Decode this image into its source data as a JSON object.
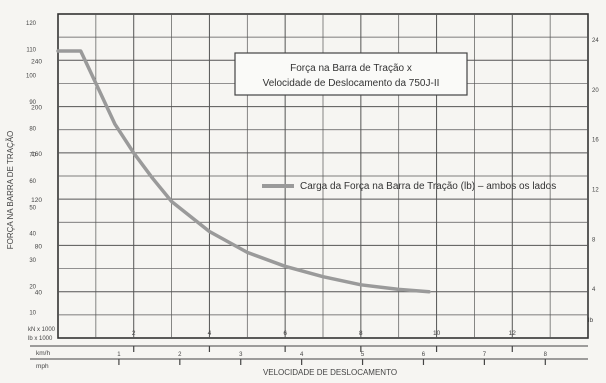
{
  "chart_data": {
    "type": "line",
    "title_lines": [
      "Força na Barra de Tração x",
      "Velocidade de Deslocamento da 750J-II"
    ],
    "xlabel": "VELOCIDADE DE DESLOCAMENTO",
    "ylabel": "FORÇA NA BARRA DE TRAÇÃO",
    "row_labels": {
      "x_row1": "km/h",
      "x_row2": "mph",
      "y_left_units": "lb x 1000",
      "y_right_units": "kN x 1000",
      "y_far_right_units": "lb"
    },
    "legend": "Carga da Força na Barra de Tração (lb) – ambos os lados",
    "grid": true,
    "xlim": [
      0,
      14
    ],
    "x_ticks": [
      2,
      4,
      6,
      8,
      10,
      12
    ],
    "x_ticks_mph": [
      1,
      2,
      3,
      4,
      5,
      6,
      7,
      8
    ],
    "ylim": [
      0,
      280
    ],
    "y_ticks_lb": [
      40,
      80,
      120,
      160,
      200,
      240
    ],
    "y_ticks_kn": [
      10,
      20,
      30,
      40,
      50,
      60,
      70,
      80,
      90,
      100,
      110,
      120
    ],
    "y_ticks_right": [
      4,
      8,
      12,
      16,
      20,
      24
    ],
    "series": [
      {
        "values_x": [
          0.0,
          0.6,
          1.0,
          1.5,
          2.0,
          2.5,
          3.0,
          4.0,
          5.0,
          6.0,
          7.0,
          8.0,
          9.0,
          9.8
        ],
        "values_y": [
          248,
          248,
          220,
          185,
          160,
          138,
          118,
          92,
          74,
          62,
          53,
          46,
          42,
          40
        ]
      }
    ],
    "color": "#9a9a9a"
  }
}
